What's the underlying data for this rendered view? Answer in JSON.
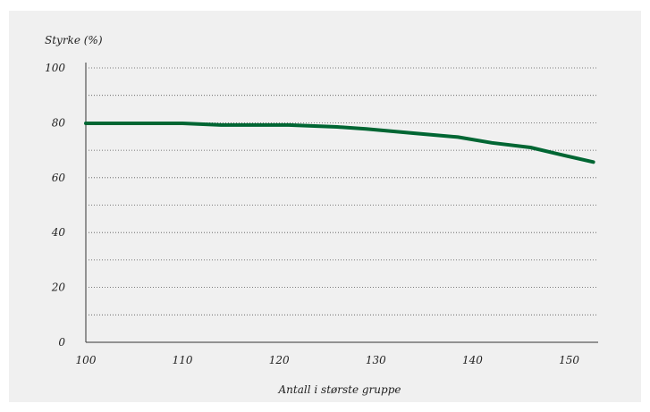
{
  "chart_data": {
    "type": "line",
    "title": "",
    "ylabel": "Styrke (%)",
    "xlabel": "Antall i største gruppe",
    "xlim": [
      100,
      153
    ],
    "ylim": [
      0,
      100
    ],
    "x_ticks": [
      100,
      110,
      120,
      130,
      140,
      150
    ],
    "y_ticks": [
      0,
      20,
      40,
      60,
      80,
      100
    ],
    "y_gridlines": [
      10,
      20,
      30,
      40,
      50,
      60,
      70,
      80,
      90,
      100
    ],
    "grid": "horizontal-dotted",
    "legend": "none",
    "series": [
      {
        "color": "#006633",
        "x": [
          100,
          105,
          110,
          114,
          121,
          126,
          129,
          134,
          138.5,
          142,
          146,
          149,
          152.5
        ],
        "y": [
          79.8,
          79.8,
          79.8,
          79.2,
          79.2,
          78.5,
          77.8,
          76.2,
          74.8,
          72.7,
          71.0,
          68.5,
          65.7
        ]
      }
    ],
    "colors": {
      "panel_background": "#f0f0f0",
      "line": "#006633",
      "axis": "#333333",
      "grid": "#555555"
    }
  }
}
